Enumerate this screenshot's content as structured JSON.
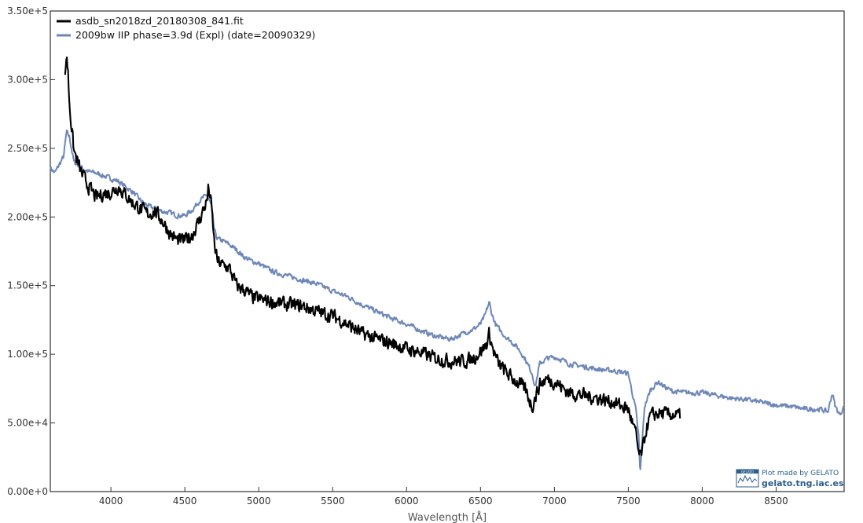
{
  "chart_data": {
    "type": "line",
    "title": "",
    "xlabel": "Wavelength [Å]",
    "ylabel": "",
    "xlim": [
      3590,
      8960
    ],
    "ylim": [
      0,
      350000
    ],
    "x_ticks": [
      4000,
      4500,
      5000,
      5500,
      6000,
      6500,
      7000,
      7500,
      8000,
      8500
    ],
    "y_ticks": [
      0,
      50000,
      100000,
      150000,
      200000,
      250000,
      300000,
      350000
    ],
    "x_tick_labels": [
      "4000",
      "4500",
      "5000",
      "5500",
      "6000",
      "6500",
      "7000",
      "7500",
      "8000",
      "8500"
    ],
    "y_tick_labels": [
      "0.00e+0",
      "5.00e+4",
      "1.00e+5",
      "1.50e+5",
      "2.00e+5",
      "2.50e+5",
      "3.00e+5",
      "3.50e+5"
    ],
    "grid": false,
    "legend_position": "top-left",
    "series": [
      {
        "name": "asdb_sn2018zd_20180308_841.fit",
        "color": "#000000",
        "noise": 4500,
        "x": [
          3690,
          3700,
          3710,
          3720,
          3730,
          3750,
          3800,
          3850,
          3900,
          3950,
          4000,
          4050,
          4100,
          4150,
          4200,
          4250,
          4300,
          4350,
          4400,
          4450,
          4500,
          4550,
          4600,
          4650,
          4660,
          4680,
          4700,
          4720,
          4750,
          4800,
          4850,
          4900,
          4950,
          5000,
          5100,
          5200,
          5300,
          5400,
          5500,
          5600,
          5700,
          5800,
          5900,
          6000,
          6100,
          6200,
          6300,
          6400,
          6450,
          6500,
          6540,
          6560,
          6580,
          6620,
          6700,
          6800,
          6850,
          6900,
          6950,
          7000,
          7100,
          7200,
          7300,
          7400,
          7500,
          7550,
          7570,
          7580,
          7600,
          7620,
          7650,
          7700,
          7800,
          7850
        ],
        "y": [
          300000,
          320000,
          305000,
          282000,
          270000,
          248000,
          232000,
          222000,
          214000,
          217000,
          218000,
          222000,
          216000,
          210000,
          206000,
          202000,
          204000,
          197000,
          188000,
          183000,
          183000,
          187000,
          198000,
          212000,
          222000,
          208000,
          180000,
          168000,
          165000,
          163000,
          150000,
          147000,
          142000,
          140000,
          138000,
          136000,
          135000,
          131000,
          128000,
          122000,
          115000,
          111000,
          108000,
          104000,
          101000,
          97000,
          95000,
          95000,
          97000,
          102000,
          107000,
          115000,
          105000,
          93000,
          84000,
          75000,
          62000,
          78000,
          82000,
          80000,
          72000,
          70000,
          68000,
          65000,
          60000,
          42000,
          28000,
          25000,
          32000,
          45000,
          55000,
          57000,
          56000,
          55000
        ]
      },
      {
        "name": "2009bw  IIP  phase=3.9d (Expl)  (date=20090329)",
        "color": "#6d87b8",
        "noise": 1600,
        "x": [
          3590,
          3620,
          3650,
          3680,
          3700,
          3720,
          3750,
          3800,
          3850,
          3900,
          3950,
          4000,
          4050,
          4100,
          4150,
          4200,
          4250,
          4300,
          4350,
          4400,
          4450,
          4500,
          4550,
          4600,
          4650,
          4680,
          4700,
          4720,
          4750,
          4800,
          4850,
          4900,
          4950,
          5000,
          5100,
          5200,
          5300,
          5400,
          5500,
          5600,
          5700,
          5800,
          5900,
          6000,
          6100,
          6200,
          6300,
          6400,
          6450,
          6500,
          6530,
          6550,
          6560,
          6570,
          6600,
          6650,
          6700,
          6750,
          6800,
          6850,
          6870,
          6900,
          6950,
          7000,
          7050,
          7100,
          7200,
          7300,
          7400,
          7500,
          7550,
          7570,
          7580,
          7590,
          7610,
          7650,
          7700,
          7750,
          7800,
          7900,
          8000,
          8100,
          8200,
          8300,
          8400,
          8500,
          8600,
          8700,
          8800,
          8850,
          8880,
          8900,
          8930,
          8960
        ],
        "y": [
          236000,
          232000,
          238000,
          244000,
          262000,
          258000,
          240000,
          236000,
          233000,
          232000,
          230000,
          228000,
          226000,
          222000,
          218000,
          212000,
          208000,
          206000,
          204000,
          203000,
          201000,
          201000,
          205000,
          212000,
          216000,
          208000,
          190000,
          184000,
          183000,
          180000,
          176000,
          171000,
          168000,
          166000,
          160000,
          157000,
          154000,
          151000,
          146000,
          142000,
          136000,
          131000,
          126000,
          122000,
          117000,
          113000,
          111000,
          116000,
          118000,
          122000,
          128000,
          135000,
          138000,
          132000,
          122000,
          115000,
          110000,
          105000,
          97000,
          86000,
          76000,
          93000,
          97000,
          98000,
          96000,
          93000,
          91000,
          89000,
          88000,
          86000,
          60000,
          40000,
          12000,
          30000,
          62000,
          74000,
          80000,
          76000,
          73000,
          72000,
          72000,
          70000,
          68000,
          67000,
          65000,
          63000,
          62000,
          60000,
          60000,
          58000,
          72000,
          62000,
          56000,
          62000
        ]
      }
    ]
  },
  "credit": {
    "badge": "GELATO",
    "line1": "Plot made by GELATO",
    "line2": "gelato.tng.iac.es"
  }
}
